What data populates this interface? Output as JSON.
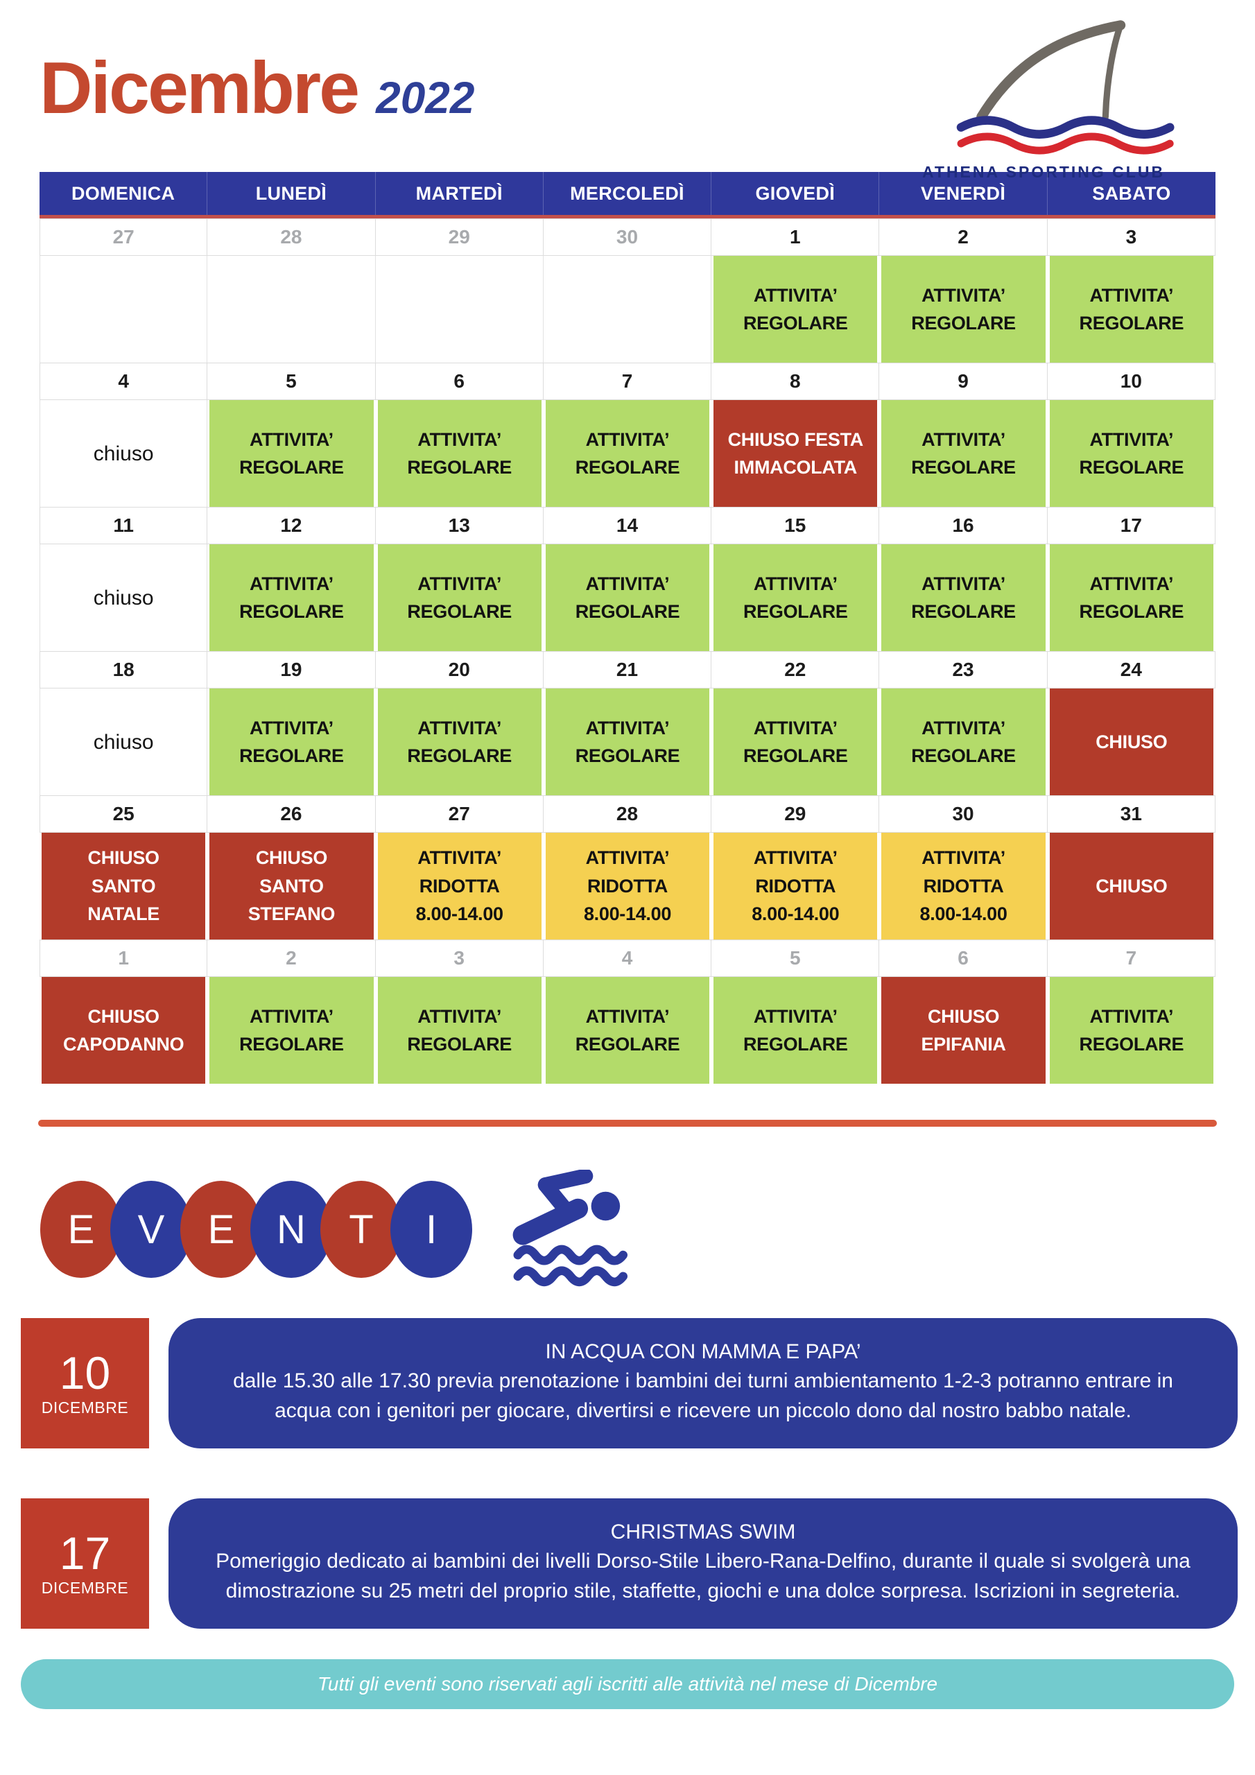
{
  "header": {
    "month": "Dicembre",
    "year": "2022",
    "club_name": "ATHENA SPORTING CLUB"
  },
  "colors": {
    "title_red": "#C4492F",
    "year_blue": "#2E3F97",
    "header_blue": "#2F389B",
    "cell_red": "#B23B2A",
    "cell_green": "#B3DB6A",
    "cell_yellow": "#F5D051",
    "event_blue": "#2E3B96",
    "teal": "#73CBCE",
    "divider_orange": "#D8593B"
  },
  "calendar": {
    "day_headers": [
      "DOMENICA",
      "LUNEDÌ",
      "MARTEDÌ",
      "MERCOLEDÌ",
      "GIOVEDÌ",
      "VENERDÌ",
      "SABATO"
    ],
    "weeks": [
      {
        "dates": [
          {
            "n": "27",
            "muted": true
          },
          {
            "n": "28",
            "muted": true
          },
          {
            "n": "29",
            "muted": true
          },
          {
            "n": "30",
            "muted": true
          },
          {
            "n": "1",
            "muted": false
          },
          {
            "n": "2",
            "muted": false
          },
          {
            "n": "3",
            "muted": false
          }
        ],
        "cells": [
          {
            "type": "empty",
            "lines": []
          },
          {
            "type": "empty",
            "lines": []
          },
          {
            "type": "empty",
            "lines": []
          },
          {
            "type": "empty",
            "lines": []
          },
          {
            "type": "regular",
            "lines": [
              "ATTIVITA’",
              "REGOLARE"
            ]
          },
          {
            "type": "regular",
            "lines": [
              "ATTIVITA’",
              "REGOLARE"
            ]
          },
          {
            "type": "regular",
            "lines": [
              "ATTIVITA’",
              "REGOLARE"
            ]
          }
        ]
      },
      {
        "dates": [
          {
            "n": "4",
            "muted": false
          },
          {
            "n": "5",
            "muted": false
          },
          {
            "n": "6",
            "muted": false
          },
          {
            "n": "7",
            "muted": false
          },
          {
            "n": "8",
            "muted": false
          },
          {
            "n": "9",
            "muted": false
          },
          {
            "n": "10",
            "muted": false
          }
        ],
        "cells": [
          {
            "type": "chiuso",
            "lines": [
              "chiuso"
            ]
          },
          {
            "type": "regular",
            "lines": [
              "ATTIVITA’",
              "REGOLARE"
            ]
          },
          {
            "type": "regular",
            "lines": [
              "ATTIVITA’",
              "REGOLARE"
            ]
          },
          {
            "type": "regular",
            "lines": [
              "ATTIVITA’",
              "REGOLARE"
            ]
          },
          {
            "type": "closed",
            "lines": [
              "CHIUSO FESTA",
              "IMMACOLATA"
            ]
          },
          {
            "type": "regular",
            "lines": [
              "ATTIVITA’",
              "REGOLARE"
            ]
          },
          {
            "type": "regular",
            "lines": [
              "ATTIVITA’",
              "REGOLARE"
            ]
          }
        ]
      },
      {
        "dates": [
          {
            "n": "11",
            "muted": false
          },
          {
            "n": "12",
            "muted": false
          },
          {
            "n": "13",
            "muted": false
          },
          {
            "n": "14",
            "muted": false
          },
          {
            "n": "15",
            "muted": false
          },
          {
            "n": "16",
            "muted": false
          },
          {
            "n": "17",
            "muted": false
          }
        ],
        "cells": [
          {
            "type": "chiuso",
            "lines": [
              "chiuso"
            ]
          },
          {
            "type": "regular",
            "lines": [
              "ATTIVITA’",
              "REGOLARE"
            ]
          },
          {
            "type": "regular",
            "lines": [
              "ATTIVITA’",
              "REGOLARE"
            ]
          },
          {
            "type": "regular",
            "lines": [
              "ATTIVITA’",
              "REGOLARE"
            ]
          },
          {
            "type": "regular",
            "lines": [
              "ATTIVITA’",
              "REGOLARE"
            ]
          },
          {
            "type": "regular",
            "lines": [
              "ATTIVITA’",
              "REGOLARE"
            ]
          },
          {
            "type": "regular",
            "lines": [
              "ATTIVITA’",
              "REGOLARE"
            ]
          }
        ]
      },
      {
        "dates": [
          {
            "n": "18",
            "muted": false
          },
          {
            "n": "19",
            "muted": false
          },
          {
            "n": "20",
            "muted": false
          },
          {
            "n": "21",
            "muted": false
          },
          {
            "n": "22",
            "muted": false
          },
          {
            "n": "23",
            "muted": false
          },
          {
            "n": "24",
            "muted": false
          }
        ],
        "cells": [
          {
            "type": "chiuso",
            "lines": [
              "chiuso"
            ]
          },
          {
            "type": "regular",
            "lines": [
              "ATTIVITA’",
              "REGOLARE"
            ]
          },
          {
            "type": "regular",
            "lines": [
              "ATTIVITA’",
              "REGOLARE"
            ]
          },
          {
            "type": "regular",
            "lines": [
              "ATTIVITA’",
              "REGOLARE"
            ]
          },
          {
            "type": "regular",
            "lines": [
              "ATTIVITA’",
              "REGOLARE"
            ]
          },
          {
            "type": "regular",
            "lines": [
              "ATTIVITA’",
              "REGOLARE"
            ]
          },
          {
            "type": "closed",
            "lines": [
              "CHIUSO"
            ]
          }
        ]
      },
      {
        "dates": [
          {
            "n": "25",
            "muted": false
          },
          {
            "n": "26",
            "muted": false
          },
          {
            "n": "27",
            "muted": false
          },
          {
            "n": "28",
            "muted": false
          },
          {
            "n": "29",
            "muted": false
          },
          {
            "n": "30",
            "muted": false
          },
          {
            "n": "31",
            "muted": false
          }
        ],
        "cells": [
          {
            "type": "closed",
            "lines": [
              "CHIUSO",
              "SANTO",
              "NATALE"
            ]
          },
          {
            "type": "closed",
            "lines": [
              "CHIUSO",
              "SANTO",
              "STEFANO"
            ]
          },
          {
            "type": "reduced",
            "lines": [
              "ATTIVITA’",
              "RIDOTTA",
              "8.00-14.00"
            ]
          },
          {
            "type": "reduced",
            "lines": [
              "ATTIVITA’",
              "RIDOTTA",
              "8.00-14.00"
            ]
          },
          {
            "type": "reduced",
            "lines": [
              "ATTIVITA’",
              "RIDOTTA",
              "8.00-14.00"
            ]
          },
          {
            "type": "reduced",
            "lines": [
              "ATTIVITA’",
              "RIDOTTA",
              "8.00-14.00"
            ]
          },
          {
            "type": "closed",
            "lines": [
              "CHIUSO"
            ]
          }
        ]
      },
      {
        "dates": [
          {
            "n": "1",
            "muted": true
          },
          {
            "n": "2",
            "muted": true
          },
          {
            "n": "3",
            "muted": true
          },
          {
            "n": "4",
            "muted": true
          },
          {
            "n": "5",
            "muted": true
          },
          {
            "n": "6",
            "muted": true
          },
          {
            "n": "7",
            "muted": true
          }
        ],
        "cells": [
          {
            "type": "closed",
            "lines": [
              "CHIUSO",
              "CAPODANNO"
            ]
          },
          {
            "type": "regular",
            "lines": [
              "ATTIVITA’",
              "REGOLARE"
            ]
          },
          {
            "type": "regular",
            "lines": [
              "ATTIVITA’",
              "REGOLARE"
            ]
          },
          {
            "type": "regular",
            "lines": [
              "ATTIVITA’",
              "REGOLARE"
            ]
          },
          {
            "type": "regular",
            "lines": [
              "ATTIVITA’",
              "REGOLARE"
            ]
          },
          {
            "type": "closed",
            "lines": [
              "CHIUSO",
              "EPIFANIA"
            ]
          },
          {
            "type": "regular",
            "lines": [
              "ATTIVITA’",
              "REGOLARE"
            ]
          }
        ]
      }
    ]
  },
  "events_section": {
    "letters": [
      {
        "char": "E",
        "color": "red"
      },
      {
        "char": "V",
        "color": "blue"
      },
      {
        "char": "E",
        "color": "red"
      },
      {
        "char": "N",
        "color": "blue"
      },
      {
        "char": "T",
        "color": "red"
      },
      {
        "char": "I",
        "color": "blue"
      }
    ],
    "swimmer_icon": "freestyle-swimmer"
  },
  "events": [
    {
      "date_num": "10",
      "date_month": "DICEMBRE",
      "title": "IN ACQUA CON MAMMA E PAPA’",
      "body": "dalle 15.30 alle 17.30 previa prenotazione i bambini dei turni ambientamento 1-2-3 potranno entrare in acqua con i genitori per giocare, divertirsi e ricevere un piccolo dono dal nostro babbo natale."
    },
    {
      "date_num": "17",
      "date_month": "DICEMBRE",
      "title": "CHRISTMAS SWIM",
      "body": "Pomeriggio dedicato ai bambini dei livelli Dorso-Stile Libero-Rana-Delfino, durante il quale si svolgerà una dimostrazione su 25 metri del proprio stile, staffette, giochi e una dolce sorpresa. Iscrizioni in segreteria."
    }
  ],
  "footer": {
    "note": "Tutti gli eventi sono riservati agli iscritti alle attività nel mese di Dicembre"
  }
}
